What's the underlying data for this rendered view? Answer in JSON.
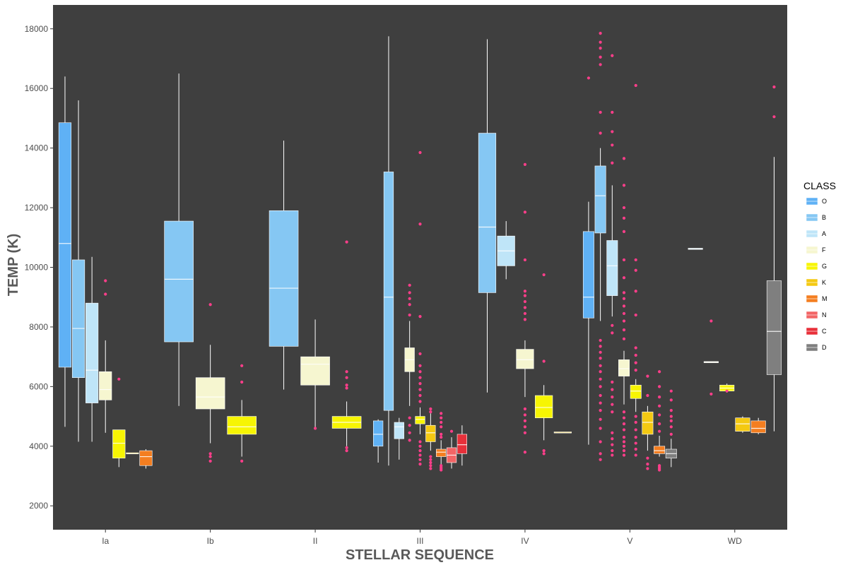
{
  "chart_data": {
    "type": "boxplot",
    "xlabel": "STELLAR SEQUENCE",
    "ylabel": "TEMP (K)",
    "categories": [
      "Ia",
      "Ib",
      "II",
      "III",
      "IV",
      "V",
      "WD"
    ],
    "ylim": [
      1200,
      18800
    ],
    "yticks": [
      2000,
      4000,
      6000,
      8000,
      10000,
      12000,
      14000,
      16000,
      18000
    ],
    "background": "#3f3f3f",
    "whisker_color": "#ffffff",
    "outlier_color": "#ff3e8a",
    "legend": {
      "title": "CLASS",
      "placement": "right",
      "entries": [
        {
          "label": "O",
          "color": "#5fb1f5"
        },
        {
          "label": "B",
          "color": "#85c7f3"
        },
        {
          "label": "A",
          "color": "#bfe5f8"
        },
        {
          "label": "F",
          "color": "#f6f6d0"
        },
        {
          "label": "G",
          "color": "#f7f503"
        },
        {
          "label": "K",
          "color": "#f4c912"
        },
        {
          "label": "M",
          "color": "#f47e20"
        },
        {
          "label": "N",
          "color": "#f26566"
        },
        {
          "label": "C",
          "color": "#e8303a"
        },
        {
          "label": "D",
          "color": "#7f7f7f"
        }
      ]
    },
    "boxes": [
      {
        "seq": "Ia",
        "class": "O",
        "lo": 4650,
        "q1": 6650,
        "med": 10800,
        "q3": 14850,
        "hi": 16400,
        "out": []
      },
      {
        "seq": "Ia",
        "class": "B",
        "lo": 4150,
        "q1": 6300,
        "med": 7950,
        "q3": 10250,
        "hi": 15600,
        "out": []
      },
      {
        "seq": "Ia",
        "class": "A",
        "lo": 4150,
        "q1": 5450,
        "med": 6550,
        "q3": 8800,
        "hi": 10350,
        "out": []
      },
      {
        "seq": "Ia",
        "class": "F",
        "lo": 4450,
        "q1": 5550,
        "med": 5900,
        "q3": 6500,
        "hi": 7550,
        "out": [
          9100,
          9550
        ]
      },
      {
        "seq": "Ia",
        "class": "G",
        "lo": 3300,
        "q1": 3600,
        "med": 4100,
        "q3": 4550,
        "hi": 4550,
        "out": [
          6250
        ]
      },
      {
        "seq": "Ia",
        "class": "K",
        "lo": 3750,
        "q1": 3750,
        "med": 3750,
        "q3": 3780,
        "hi": 3780,
        "out": []
      },
      {
        "seq": "Ia",
        "class": "M",
        "lo": 3250,
        "q1": 3350,
        "med": 3650,
        "q3": 3850,
        "hi": 3900,
        "out": []
      },
      {
        "seq": "Ib",
        "class": "B",
        "lo": 5350,
        "q1": 7500,
        "med": 9600,
        "q3": 11550,
        "hi": 16500,
        "out": []
      },
      {
        "seq": "Ib",
        "class": "F",
        "lo": 4100,
        "q1": 5250,
        "med": 5650,
        "q3": 6300,
        "hi": 7400,
        "out": [
          3500,
          3650,
          3750,
          8750
        ]
      },
      {
        "seq": "Ib",
        "class": "G",
        "lo": 3650,
        "q1": 4400,
        "med": 4650,
        "q3": 5000,
        "hi": 5550,
        "out": [
          3500,
          6150,
          6700
        ]
      },
      {
        "seq": "II",
        "class": "B",
        "lo": 5900,
        "q1": 7350,
        "med": 9300,
        "q3": 11900,
        "hi": 14250,
        "out": []
      },
      {
        "seq": "II",
        "class": "F",
        "lo": 4600,
        "q1": 6050,
        "med": 6750,
        "q3": 7000,
        "hi": 8250,
        "out": [
          4600
        ]
      },
      {
        "seq": "II",
        "class": "G",
        "lo": 4000,
        "q1": 4600,
        "med": 4800,
        "q3": 5000,
        "hi": 5500,
        "out": [
          3850,
          3950,
          5950,
          6050,
          6300,
          6500,
          10850
        ]
      },
      {
        "seq": "III",
        "class": "O",
        "lo": 3450,
        "q1": 4000,
        "med": 4400,
        "q3": 4850,
        "hi": 4900,
        "out": []
      },
      {
        "seq": "III",
        "class": "B",
        "lo": 3350,
        "q1": 5200,
        "med": 9000,
        "q3": 13200,
        "hi": 17750,
        "out": []
      },
      {
        "seq": "III",
        "class": "A",
        "lo": 3550,
        "q1": 4250,
        "med": 4650,
        "q3": 4800,
        "hi": 4950,
        "out": []
      },
      {
        "seq": "III",
        "class": "F",
        "lo": 5350,
        "q1": 6500,
        "med": 6900,
        "q3": 7300,
        "hi": 8200,
        "out": [
          4200,
          4450,
          4700,
          4950,
          8400,
          8750,
          8950,
          9150,
          9400
        ]
      },
      {
        "seq": "III",
        "class": "G",
        "lo": 4400,
        "q1": 4750,
        "med": 4900,
        "q3": 5000,
        "hi": 5300,
        "out": [
          3400,
          3550,
          3700,
          3850,
          4000,
          4150,
          5500,
          5700,
          5900,
          6100,
          6300,
          6500,
          6700,
          7100,
          8350,
          11450,
          13850
        ]
      },
      {
        "seq": "III",
        "class": "K",
        "lo": 3850,
        "q1": 4150,
        "med": 4450,
        "q3": 4700,
        "hi": 5100,
        "out": [
          3250,
          3350,
          3450,
          3550,
          3650,
          5150,
          5250
        ]
      },
      {
        "seq": "III",
        "class": "M",
        "lo": 3300,
        "q1": 3650,
        "med": 3800,
        "q3": 3900,
        "hi": 4200,
        "out": [
          3200,
          3250,
          3300,
          3350,
          4300,
          4400,
          4650,
          4800,
          4950,
          5100
        ]
      },
      {
        "seq": "III",
        "class": "N",
        "lo": 3250,
        "q1": 3450,
        "med": 3700,
        "q3": 3950,
        "hi": 4300,
        "out": [
          4500
        ]
      },
      {
        "seq": "III",
        "class": "C",
        "lo": 3350,
        "q1": 3750,
        "med": 4050,
        "q3": 4400,
        "hi": 4700,
        "out": []
      },
      {
        "seq": "IV",
        "class": "B",
        "lo": 5800,
        "q1": 9150,
        "med": 11350,
        "q3": 14500,
        "hi": 17650,
        "out": []
      },
      {
        "seq": "IV",
        "class": "A",
        "lo": 9600,
        "q1": 10050,
        "med": 10550,
        "q3": 11050,
        "hi": 11550,
        "out": []
      },
      {
        "seq": "IV",
        "class": "F",
        "lo": 5650,
        "q1": 6600,
        "med": 6900,
        "q3": 7250,
        "hi": 7550,
        "out": [
          3800,
          4450,
          4650,
          4850,
          5050,
          5250,
          8250,
          8450,
          8650,
          8850,
          9050,
          9200,
          10250,
          11850,
          13450
        ]
      },
      {
        "seq": "IV",
        "class": "G",
        "lo": 4200,
        "q1": 4950,
        "med": 5300,
        "q3": 5700,
        "hi": 6050,
        "out": [
          3750,
          3850,
          6850,
          9750
        ]
      },
      {
        "seq": "IV",
        "class": "K",
        "lo": 4450,
        "q1": 4450,
        "med": 4450,
        "q3": 4480,
        "hi": 4480,
        "out": []
      },
      {
        "seq": "V",
        "class": "O",
        "lo": 4050,
        "q1": 8300,
        "med": 9000,
        "q3": 11200,
        "hi": 12200,
        "out": [
          16350
        ]
      },
      {
        "seq": "V",
        "class": "B",
        "lo": 8200,
        "q1": 11150,
        "med": 12400,
        "q3": 13400,
        "hi": 14000,
        "out": [
          3550,
          3750,
          4150,
          4600,
          4900,
          5200,
          5450,
          5700,
          6000,
          6250,
          6500,
          6700,
          6950,
          7150,
          7350,
          7550,
          14500,
          15200,
          16800,
          17050,
          17350,
          17550,
          17850
        ]
      },
      {
        "seq": "V",
        "class": "A",
        "lo": 8350,
        "q1": 9050,
        "med": 10050,
        "q3": 10900,
        "hi": 12750,
        "out": [
          3700,
          3850,
          4050,
          4250,
          4450,
          5150,
          5400,
          5650,
          5900,
          6150,
          7800,
          8050,
          13500,
          14100,
          14550,
          15200,
          17100
        ]
      },
      {
        "seq": "V",
        "class": "F",
        "lo": 5400,
        "q1": 6350,
        "med": 6600,
        "q3": 6900,
        "hi": 7200,
        "out": [
          3700,
          3850,
          4000,
          4150,
          4300,
          4550,
          4750,
          4950,
          5150,
          7600,
          7900,
          8200,
          8450,
          8700,
          8950,
          9150,
          9650,
          10250,
          11200,
          11650,
          12000,
          12750,
          13650
        ]
      },
      {
        "seq": "V",
        "class": "G",
        "lo": 5150,
        "q1": 5600,
        "med": 5850,
        "q3": 6050,
        "hi": 6250,
        "out": [
          3700,
          3900,
          4100,
          4300,
          4550,
          4800,
          5000,
          6550,
          6800,
          7050,
          7300,
          8400,
          9200,
          9900,
          10250,
          16100
        ]
      },
      {
        "seq": "V",
        "class": "K",
        "lo": 3850,
        "q1": 4400,
        "med": 4800,
        "q3": 5150,
        "hi": 5350,
        "out": [
          3250,
          3400,
          3600,
          5700,
          6350
        ]
      },
      {
        "seq": "V",
        "class": "M",
        "lo": 3650,
        "q1": 3750,
        "med": 3850,
        "q3": 4000,
        "hi": 4350,
        "out": [
          3200,
          3250,
          3300,
          3350,
          4500,
          4750,
          5050,
          5350,
          5650,
          6000,
          6500
        ]
      },
      {
        "seq": "V",
        "class": "D",
        "lo": 3300,
        "q1": 3600,
        "med": 3750,
        "q3": 3900,
        "hi": 4250,
        "out": [
          4400,
          4650,
          4850,
          5000,
          5200,
          5550,
          5850
        ]
      },
      {
        "seq": "WD",
        "class": "A",
        "lo": 10600,
        "q1": 10600,
        "med": 10620,
        "q3": 10640,
        "hi": 10640,
        "out": []
      },
      {
        "seq": "WD",
        "class": "F",
        "lo": 6800,
        "q1": 6800,
        "med": 6820,
        "q3": 6840,
        "hi": 6840,
        "out": [
          5750,
          8200
        ]
      },
      {
        "seq": "WD",
        "class": "G",
        "lo": 5800,
        "q1": 5850,
        "med": 5950,
        "q3": 6050,
        "hi": 6100,
        "out": [
          5850
        ]
      },
      {
        "seq": "WD",
        "class": "K",
        "lo": 4450,
        "q1": 4500,
        "med": 4750,
        "q3": 4950,
        "hi": 5000,
        "out": []
      },
      {
        "seq": "WD",
        "class": "M",
        "lo": 4400,
        "q1": 4450,
        "med": 4600,
        "q3": 4850,
        "hi": 4950,
        "out": []
      },
      {
        "seq": "WD",
        "class": "D",
        "lo": 4500,
        "q1": 6400,
        "med": 7850,
        "q3": 9550,
        "hi": 13700,
        "out": [
          15050,
          16050
        ]
      }
    ]
  }
}
